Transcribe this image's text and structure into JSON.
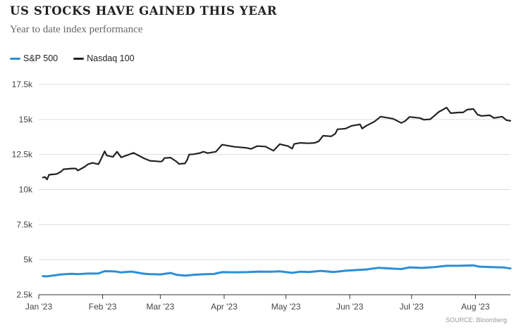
{
  "header": {
    "title": "US STOCKS HAVE GAINED THIS YEAR",
    "subtitle": "Year to date index performance"
  },
  "source": "SOURCE: Bloomberg",
  "chart_data": {
    "type": "line",
    "title": "US STOCKS HAVE GAINED THIS YEAR",
    "subtitle": "Year to date index performance",
    "xlabel": "",
    "ylabel": "",
    "x_range": [
      "2023-01-03",
      "2023-08-18"
    ],
    "ylim": [
      2500,
      17500
    ],
    "y_ticks": [
      {
        "value": 17500,
        "label": "17.5k"
      },
      {
        "value": 15000,
        "label": "15k"
      },
      {
        "value": 12500,
        "label": "12.5k"
      },
      {
        "value": 10000,
        "label": "10k"
      },
      {
        "value": 7500,
        "label": "7.5k"
      },
      {
        "value": 5000,
        "label": "5k"
      },
      {
        "value": 2500,
        "label": "2.5k"
      }
    ],
    "x_ticks": [
      {
        "date": "2023-01-01",
        "label": "Jan '23"
      },
      {
        "date": "2023-02-01",
        "label": "Feb '23"
      },
      {
        "date": "2023-03-01",
        "label": "Mar '23"
      },
      {
        "date": "2023-04-01",
        "label": "Apr '23"
      },
      {
        "date": "2023-05-01",
        "label": "May '23"
      },
      {
        "date": "2023-06-01",
        "label": "Jun '23"
      },
      {
        "date": "2023-07-01",
        "label": "Jul '23"
      },
      {
        "date": "2023-08-01",
        "label": "Aug '23"
      }
    ],
    "grid": "horizontal",
    "legend_position": "top-left",
    "series": [
      {
        "name": "S&P 500",
        "color": "#2b8fd6",
        "points": [
          [
            "2023-01-03",
            3825
          ],
          [
            "2023-01-05",
            3810
          ],
          [
            "2023-01-09",
            3890
          ],
          [
            "2023-01-12",
            3950
          ],
          [
            "2023-01-17",
            3990
          ],
          [
            "2023-01-20",
            3970
          ],
          [
            "2023-01-25",
            4010
          ],
          [
            "2023-01-30",
            4020
          ],
          [
            "2023-02-02",
            4180
          ],
          [
            "2023-02-07",
            4160
          ],
          [
            "2023-02-10",
            4090
          ],
          [
            "2023-02-15",
            4150
          ],
          [
            "2023-02-21",
            4000
          ],
          [
            "2023-02-24",
            3970
          ],
          [
            "2023-03-01",
            3950
          ],
          [
            "2023-03-06",
            4050
          ],
          [
            "2023-03-09",
            3920
          ],
          [
            "2023-03-13",
            3860
          ],
          [
            "2023-03-17",
            3920
          ],
          [
            "2023-03-22",
            3960
          ],
          [
            "2023-03-27",
            3980
          ],
          [
            "2023-03-31",
            4110
          ],
          [
            "2023-04-06",
            4100
          ],
          [
            "2023-04-12",
            4110
          ],
          [
            "2023-04-18",
            4150
          ],
          [
            "2023-04-24",
            4140
          ],
          [
            "2023-04-28",
            4170
          ],
          [
            "2023-05-04",
            4060
          ],
          [
            "2023-05-08",
            4140
          ],
          [
            "2023-05-12",
            4120
          ],
          [
            "2023-05-18",
            4200
          ],
          [
            "2023-05-24",
            4120
          ],
          [
            "2023-05-30",
            4210
          ],
          [
            "2023-06-05",
            4270
          ],
          [
            "2023-06-09",
            4300
          ],
          [
            "2023-06-15",
            4420
          ],
          [
            "2023-06-21",
            4370
          ],
          [
            "2023-06-26",
            4330
          ],
          [
            "2023-06-30",
            4450
          ],
          [
            "2023-07-06",
            4410
          ],
          [
            "2023-07-12",
            4470
          ],
          [
            "2023-07-18",
            4560
          ],
          [
            "2023-07-24",
            4560
          ],
          [
            "2023-07-31",
            4590
          ],
          [
            "2023-08-03",
            4500
          ],
          [
            "2023-08-09",
            4470
          ],
          [
            "2023-08-15",
            4440
          ],
          [
            "2023-08-18",
            4370
          ]
        ]
      },
      {
        "name": "Nasdaq 100",
        "color": "#222222",
        "points": [
          [
            "2023-01-03",
            10860
          ],
          [
            "2023-01-04",
            10900
          ],
          [
            "2023-01-05",
            10720
          ],
          [
            "2023-01-06",
            11060
          ],
          [
            "2023-01-09",
            11100
          ],
          [
            "2023-01-10",
            11130
          ],
          [
            "2023-01-12",
            11300
          ],
          [
            "2023-01-13",
            11450
          ],
          [
            "2023-01-17",
            11500
          ],
          [
            "2023-01-19",
            11500
          ],
          [
            "2023-01-20",
            11360
          ],
          [
            "2023-01-23",
            11600
          ],
          [
            "2023-01-25",
            11810
          ],
          [
            "2023-01-27",
            11900
          ],
          [
            "2023-01-30",
            11810
          ],
          [
            "2023-01-31",
            12100
          ],
          [
            "2023-02-02",
            12730
          ],
          [
            "2023-02-03",
            12430
          ],
          [
            "2023-02-06",
            12330
          ],
          [
            "2023-02-08",
            12700
          ],
          [
            "2023-02-10",
            12300
          ],
          [
            "2023-02-14",
            12510
          ],
          [
            "2023-02-16",
            12620
          ],
          [
            "2023-02-21",
            12230
          ],
          [
            "2023-02-24",
            12050
          ],
          [
            "2023-02-27",
            12020
          ],
          [
            "2023-03-01",
            11990
          ],
          [
            "2023-03-02",
            12030
          ],
          [
            "2023-03-03",
            12250
          ],
          [
            "2023-03-06",
            12280
          ],
          [
            "2023-03-09",
            11980
          ],
          [
            "2023-03-10",
            11830
          ],
          [
            "2023-03-13",
            11860
          ],
          [
            "2023-03-14",
            12100
          ],
          [
            "2023-03-15",
            12500
          ],
          [
            "2023-03-17",
            12520
          ],
          [
            "2023-03-20",
            12600
          ],
          [
            "2023-03-22",
            12700
          ],
          [
            "2023-03-24",
            12600
          ],
          [
            "2023-03-28",
            12700
          ],
          [
            "2023-03-31",
            13200
          ],
          [
            "2023-04-04",
            13100
          ],
          [
            "2023-04-06",
            13050
          ],
          [
            "2023-04-10",
            13000
          ],
          [
            "2023-04-12",
            12970
          ],
          [
            "2023-04-14",
            12900
          ],
          [
            "2023-04-17",
            13100
          ],
          [
            "2023-04-21",
            13070
          ],
          [
            "2023-04-25",
            12770
          ],
          [
            "2023-04-28",
            13240
          ],
          [
            "2023-05-02",
            13100
          ],
          [
            "2023-05-04",
            12920
          ],
          [
            "2023-05-05",
            13250
          ],
          [
            "2023-05-08",
            13330
          ],
          [
            "2023-05-12",
            13300
          ],
          [
            "2023-05-15",
            13330
          ],
          [
            "2023-05-17",
            13450
          ],
          [
            "2023-05-19",
            13840
          ],
          [
            "2023-05-23",
            13800
          ],
          [
            "2023-05-25",
            13990
          ],
          [
            "2023-05-26",
            14300
          ],
          [
            "2023-05-30",
            14350
          ],
          [
            "2023-06-02",
            14550
          ],
          [
            "2023-06-06",
            14650
          ],
          [
            "2023-06-07",
            14350
          ],
          [
            "2023-06-09",
            14550
          ],
          [
            "2023-06-13",
            14850
          ],
          [
            "2023-06-16",
            15200
          ],
          [
            "2023-06-20",
            15100
          ],
          [
            "2023-06-22",
            15050
          ],
          [
            "2023-06-26",
            14750
          ],
          [
            "2023-06-28",
            14900
          ],
          [
            "2023-06-30",
            15180
          ],
          [
            "2023-07-05",
            15100
          ],
          [
            "2023-07-07",
            14980
          ],
          [
            "2023-07-10",
            15010
          ],
          [
            "2023-07-12",
            15250
          ],
          [
            "2023-07-14",
            15520
          ],
          [
            "2023-07-18",
            15850
          ],
          [
            "2023-07-20",
            15450
          ],
          [
            "2023-07-24",
            15500
          ],
          [
            "2023-07-26",
            15500
          ],
          [
            "2023-07-28",
            15700
          ],
          [
            "2023-07-31",
            15750
          ],
          [
            "2023-08-02",
            15350
          ],
          [
            "2023-08-04",
            15250
          ],
          [
            "2023-08-08",
            15300
          ],
          [
            "2023-08-10",
            15100
          ],
          [
            "2023-08-14",
            15200
          ],
          [
            "2023-08-16",
            14950
          ],
          [
            "2023-08-18",
            14900
          ]
        ]
      }
    ]
  }
}
